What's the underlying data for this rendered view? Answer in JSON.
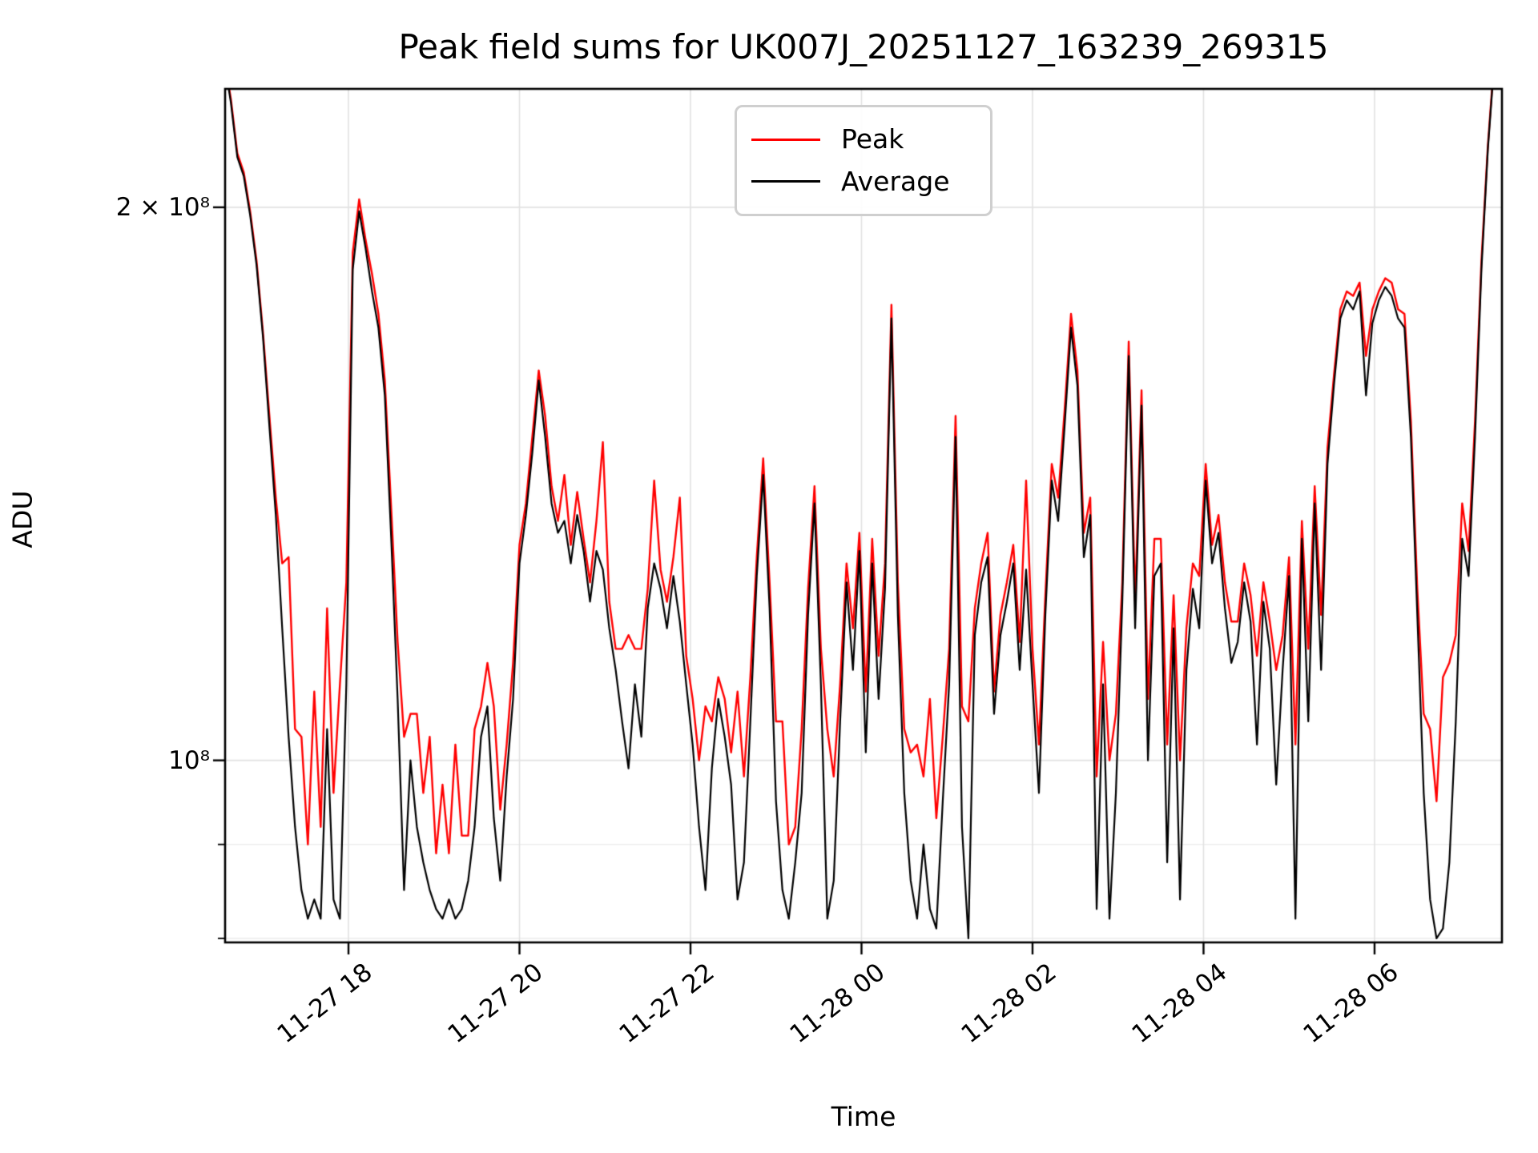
{
  "figure": {
    "title": "Peak field sums for UK007J_20251127_163239_269315"
  },
  "chart_data": {
    "type": "line",
    "title": "Peak field sums for UK007J_20251127_163239_269315",
    "xlabel": "Time",
    "ylabel": "ADU",
    "yscale": "log",
    "grid": true,
    "background": "#ffffff",
    "grid_color_major": "#e2e2e2",
    "grid_color_minor": "#ececec",
    "spine_color": "#000000",
    "legend": {
      "position": "upper center",
      "entries": [
        {
          "label": "Peak",
          "color": "#ff0000"
        },
        {
          "label": "Average",
          "color": "#000000"
        }
      ]
    },
    "x_axis": {
      "unit": "hours since 2025-11-27 00:00",
      "lim_hours": [
        16.557,
        31.49
      ],
      "start_hours": 16.55,
      "step_hours": 0.075,
      "n_points": 200,
      "ticks": [
        {
          "hour": 18,
          "label": "11-27 18"
        },
        {
          "hour": 20,
          "label": "11-27 20"
        },
        {
          "hour": 22,
          "label": "11-27 22"
        },
        {
          "hour": 24,
          "label": "11-28 00"
        },
        {
          "hour": 26,
          "label": "11-28 02"
        },
        {
          "hour": 28,
          "label": "11-28 04"
        },
        {
          "hour": 30,
          "label": "11-28 06"
        }
      ]
    },
    "y_axis": {
      "unit": "ADU",
      "scale": "log",
      "lim_1e6": [
        79.6,
        232
      ],
      "major_ticks": [
        {
          "value_1e6": 100,
          "label": "10⁸"
        },
        {
          "value_1e6": 200,
          "label": "2 × 10⁸"
        }
      ],
      "minor_ticks_1e6": [
        80,
        90
      ]
    },
    "values_unit": "1e6 ADU",
    "series": [
      {
        "name": "Peak",
        "color": "#ff0000",
        "linewidth": 2.4,
        "values_1e6": [
          241,
          229,
          214,
          209,
          199,
          187,
          171,
          154,
          139,
          128,
          129,
          104,
          103,
          90,
          109,
          92,
          121,
          96,
          110,
          125,
          189,
          202,
          192,
          184,
          175,
          161,
          137,
          116,
          103,
          106,
          106,
          96,
          103,
          89,
          97,
          89,
          102,
          91,
          91,
          104,
          107,
          113,
          107,
          94,
          102,
          113,
          131,
          138,
          150,
          163,
          154,
          141,
          135,
          143,
          131,
          140,
          132,
          125,
          135,
          149,
          122,
          115,
          115,
          117,
          115,
          115,
          124,
          142,
          127,
          122,
          129,
          139,
          114,
          108,
          100,
          107,
          105,
          111,
          108,
          101,
          109,
          98,
          111,
          129,
          146,
          125,
          105,
          105,
          90,
          92,
          104,
          124,
          141,
          115,
          104,
          98,
          110,
          128,
          118,
          133,
          109,
          132,
          114,
          128,
          177,
          125,
          104,
          101,
          102,
          98,
          108,
          93,
          103,
          115,
          154,
          107,
          105,
          121,
          128,
          133,
          109,
          120,
          125,
          131,
          116,
          142,
          115,
          102,
          123,
          145,
          139,
          155,
          175,
          163,
          133,
          139,
          98,
          116,
          100,
          106,
          125,
          169,
          122,
          159,
          108,
          132,
          132,
          102,
          123,
          100,
          118,
          128,
          126,
          145,
          131,
          136,
          125,
          119,
          119,
          128,
          123,
          114,
          125,
          119,
          112,
          117,
          129,
          102,
          135,
          115,
          141,
          120,
          148,
          162,
          176,
          180,
          179,
          182,
          166,
          176,
          180,
          183,
          182,
          176,
          175,
          153,
          124,
          106,
          104,
          95,
          111,
          113,
          117,
          138,
          130,
          153,
          187,
          216,
          241,
          247
        ]
      },
      {
        "name": "Average",
        "color": "#000000",
        "linewidth": 2.2,
        "values_1e6": [
          240,
          228,
          213,
          208,
          198,
          186,
          170,
          152,
          136,
          118,
          103,
          92,
          85,
          82,
          84,
          82,
          104,
          84,
          82,
          110,
          185,
          199,
          190,
          180,
          172,
          158,
          132,
          108,
          85,
          100,
          92,
          88,
          85,
          83,
          82,
          84,
          82,
          83,
          86,
          92,
          103,
          107,
          93,
          86,
          98,
          108,
          128,
          136,
          147,
          161,
          150,
          138,
          133,
          135,
          128,
          136,
          130,
          122,
          130,
          127,
          118,
          112,
          105,
          99,
          110,
          103,
          121,
          128,
          124,
          118,
          126,
          119,
          110,
          102,
          92,
          85,
          99,
          108,
          103,
          97,
          84,
          88,
          105,
          126,
          143,
          121,
          95,
          85,
          82,
          88,
          96,
          120,
          138,
          110,
          82,
          86,
          105,
          125,
          112,
          130,
          101,
          128,
          108,
          124,
          174,
          120,
          96,
          86,
          82,
          90,
          83,
          81,
          95,
          110,
          150,
          92,
          80,
          117,
          125,
          129,
          106,
          117,
          122,
          128,
          112,
          127,
          110,
          96,
          120,
          142,
          135,
          152,
          172,
          160,
          129,
          136,
          83,
          110,
          82,
          96,
          122,
          166,
          118,
          156,
          100,
          126,
          128,
          88,
          118,
          84,
          112,
          124,
          118,
          142,
          128,
          133,
          121,
          113,
          116,
          125,
          119,
          102,
          122,
          115,
          97,
          112,
          126,
          82,
          132,
          105,
          138,
          112,
          145,
          160,
          174,
          178,
          176,
          180,
          158,
          173,
          178,
          181,
          179,
          174,
          172,
          150,
          120,
          96,
          84,
          80,
          81,
          88,
          105,
          132,
          126,
          150,
          185,
          215,
          240,
          246
        ]
      }
    ]
  }
}
